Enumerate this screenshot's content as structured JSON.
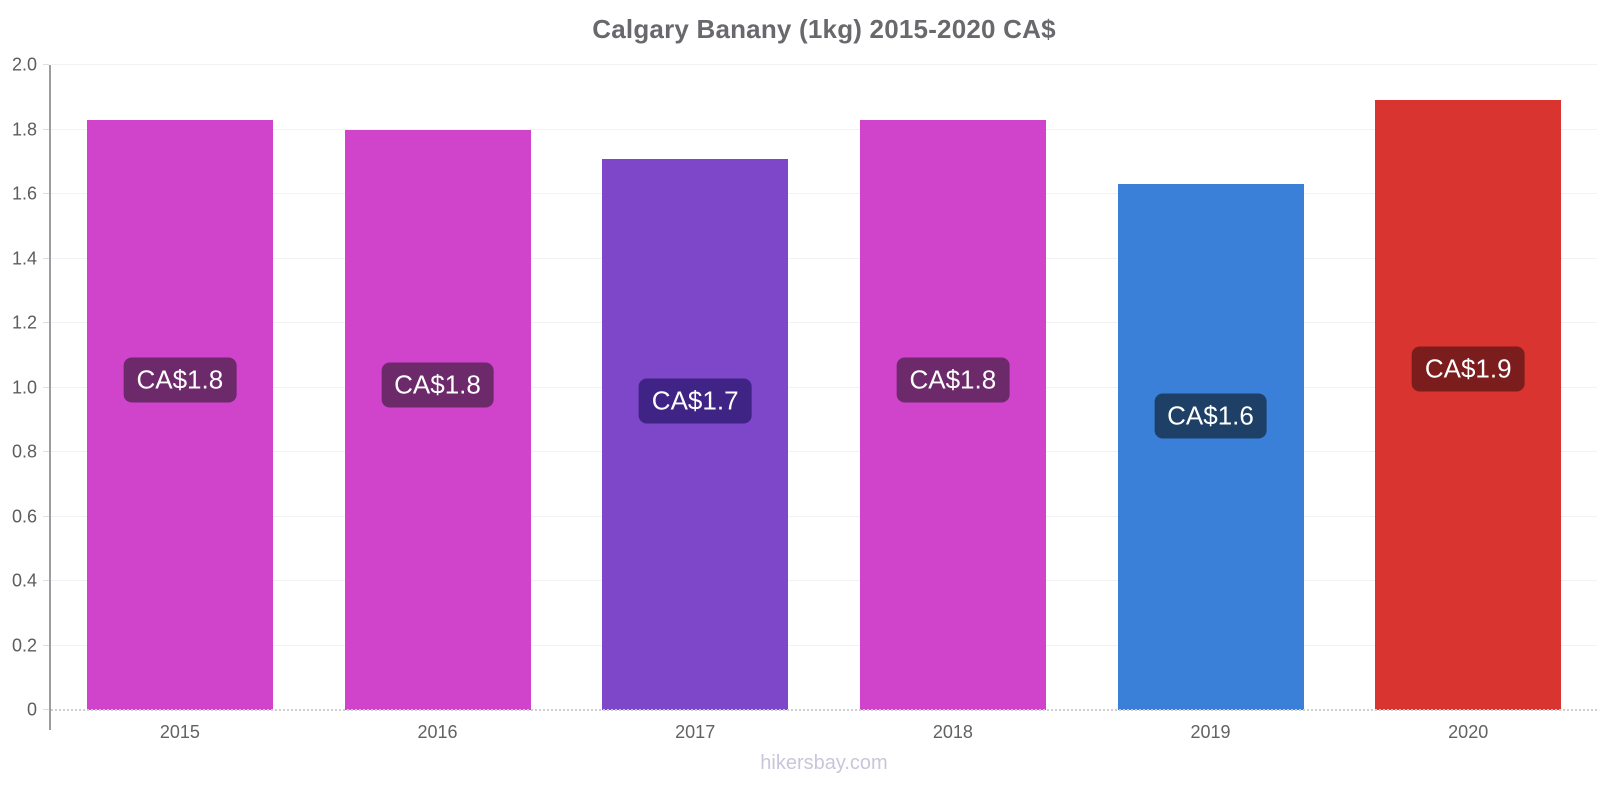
{
  "header": {
    "title": "Calgary Banany (1kg) 2015-2020 CA$"
  },
  "footer": {
    "text": "hikersbay.com"
  },
  "colors": {
    "background": "#ffffff",
    "title_text": "#69696d",
    "axis_line": "#9d9da1",
    "axis_label_text": "#5c5d5f",
    "gridline": "#f2f2f4",
    "baseline": "#cdcdcd",
    "watermark_text": "#c8c6da",
    "badge_text": "#ffffff"
  },
  "chart_data": {
    "type": "bar",
    "title": "Calgary Banany (1kg) 2015-2020 CA$",
    "categories": [
      "2015",
      "2016",
      "2017",
      "2018",
      "2019",
      "2020"
    ],
    "values": [
      1.83,
      1.8,
      1.71,
      1.83,
      1.63,
      1.89
    ],
    "data_labels": [
      "CA$1.8",
      "CA$1.8",
      "CA$1.7",
      "CA$1.8",
      "CA$1.6",
      "CA$1.9"
    ],
    "bar_colors": [
      "#d044cb",
      "#d044cb",
      "#7e46c9",
      "#d044cb",
      "#3a80d9",
      "#da3431"
    ],
    "label_bg_colors": [
      "#6d2a6b",
      "#6d2a6b",
      "#3f2486",
      "#6d2a6b",
      "#1e4066",
      "#7c1d1d"
    ],
    "xlabel": "",
    "ylabel": "",
    "ylim": [
      0,
      2
    ],
    "yticks": [
      "0",
      "0.2",
      "0.4",
      "0.6",
      "0.8",
      "1.0",
      "1.2",
      "1.4",
      "1.6",
      "1.8",
      "2.0"
    ],
    "grid": true,
    "legend": false,
    "footer": "hikersbay.com"
  }
}
